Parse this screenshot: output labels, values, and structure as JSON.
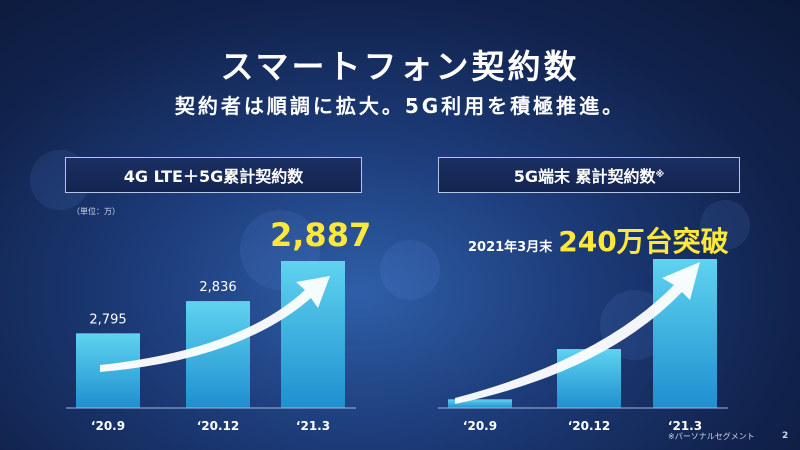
{
  "title": "スマートフォン契約数",
  "subtitle": "契約者は順調に拡大。5G利用を積極推進。",
  "page_number": "2",
  "footnote": "※パーソナルセグメント",
  "left_panel": {
    "label": "4G LTE＋5G累計契約数",
    "unit": "（単位：万）",
    "highlight": "2,887"
  },
  "right_panel": {
    "label": "5G端末 累計契約数",
    "label_mark": "※",
    "headline_lead": "2021年3月末",
    "headline_value": "240万台突破"
  },
  "colors": {
    "bar_top": "#5fd3ef",
    "bar_bottom": "#1f8fcf",
    "highlight": "#ffe83a",
    "arrow": "#ffffff"
  },
  "chart_data": [
    {
      "type": "bar",
      "title": "4G LTE＋5G累計契約数",
      "unit": "（単位：万）",
      "categories": [
        "‘20.9",
        "‘20.12",
        "‘21.3"
      ],
      "values": [
        2795,
        2836,
        2887
      ],
      "data_labels": [
        "2,795",
        "2,836",
        ""
      ],
      "ylim": [
        2700,
        2900
      ]
    },
    {
      "type": "bar",
      "title": "5G端末 累計契約数",
      "categories": [
        "‘20.9",
        "‘20.12",
        "‘21.3"
      ],
      "values": [
        14,
        95,
        240
      ],
      "ylim": [
        0,
        250
      ]
    }
  ]
}
